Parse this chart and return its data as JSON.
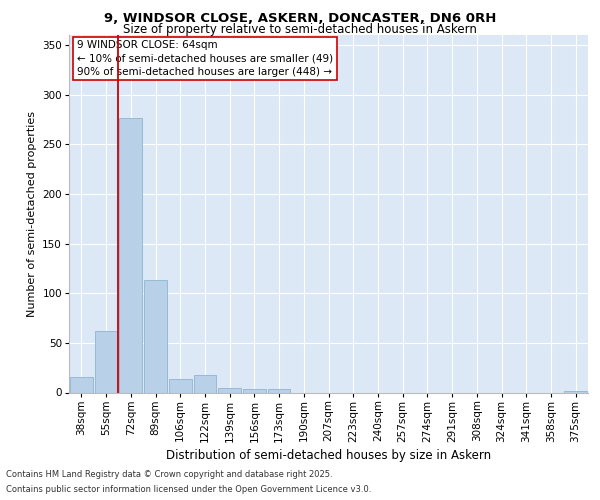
{
  "title_line1": "9, WINDSOR CLOSE, ASKERN, DONCASTER, DN6 0RH",
  "title_line2": "Size of property relative to semi-detached houses in Askern",
  "xlabel": "Distribution of semi-detached houses by size in Askern",
  "ylabel": "Number of semi-detached properties",
  "bin_labels": [
    "38sqm",
    "55sqm",
    "72sqm",
    "89sqm",
    "106sqm",
    "122sqm",
    "139sqm",
    "156sqm",
    "173sqm",
    "190sqm",
    "207sqm",
    "223sqm",
    "240sqm",
    "257sqm",
    "274sqm",
    "291sqm",
    "308sqm",
    "324sqm",
    "341sqm",
    "358sqm",
    "375sqm"
  ],
  "bar_values": [
    16,
    62,
    276,
    113,
    14,
    18,
    5,
    4,
    4,
    0,
    0,
    0,
    0,
    0,
    0,
    0,
    0,
    0,
    0,
    0,
    2
  ],
  "bar_color": "#b8d0e8",
  "bar_edgecolor": "#90b4d0",
  "annotation_title": "9 WINDSOR CLOSE: 64sqm",
  "annotation_line1": "← 10% of semi-detached houses are smaller (49)",
  "annotation_line2": "90% of semi-detached houses are larger (448) →",
  "footnote1": "Contains HM Land Registry data © Crown copyright and database right 2025.",
  "footnote2": "Contains public sector information licensed under the Open Government Licence v3.0.",
  "ylim": [
    0,
    360
  ],
  "yticks": [
    0,
    50,
    100,
    150,
    200,
    250,
    300,
    350
  ],
  "bg_color": "#dce8f5",
  "vline_color": "#cc0000",
  "vline_x": 1.5,
  "grid_color": "#ffffff",
  "title1_fontsize": 9.5,
  "title2_fontsize": 8.5,
  "xlabel_fontsize": 8.5,
  "ylabel_fontsize": 8.0,
  "tick_fontsize": 7.5,
  "ann_fontsize": 7.5,
  "footnote_fontsize": 6.0
}
